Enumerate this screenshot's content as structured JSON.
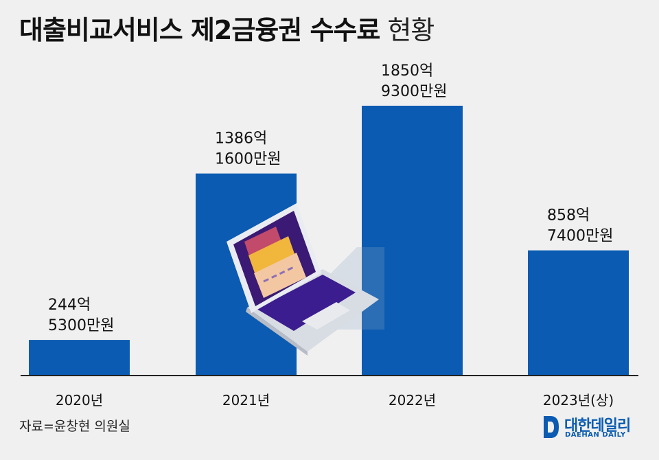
{
  "title_bold": "대출비교서비스 제2금융권 수수료",
  "title_light": "현황",
  "source": "자료=윤창현 의원실",
  "logo": {
    "name": "대한데일리",
    "sub": "DAEHAN DAILY"
  },
  "colors": {
    "bar": "#0a5bb1",
    "background": "#f0f0f0",
    "baseline": "#222222"
  },
  "illustration": "laptop-with-credit-cards",
  "chart_data": {
    "type": "bar",
    "title": "대출비교서비스 제2금융권 수수료 현황",
    "categories": [
      "2020년",
      "2021년",
      "2022년",
      "2023년(상)"
    ],
    "values": [
      2445300,
      13861600,
      18509300,
      8587400
    ],
    "value_unit": "만원",
    "labels": [
      [
        "244억",
        "5300만원"
      ],
      [
        "1386억",
        "1600만원"
      ],
      [
        "1850억",
        "9300만원"
      ],
      [
        "858억",
        "7400만원"
      ]
    ],
    "ylim": [
      0,
      18509300
    ],
    "grid": false,
    "legend": "none"
  }
}
